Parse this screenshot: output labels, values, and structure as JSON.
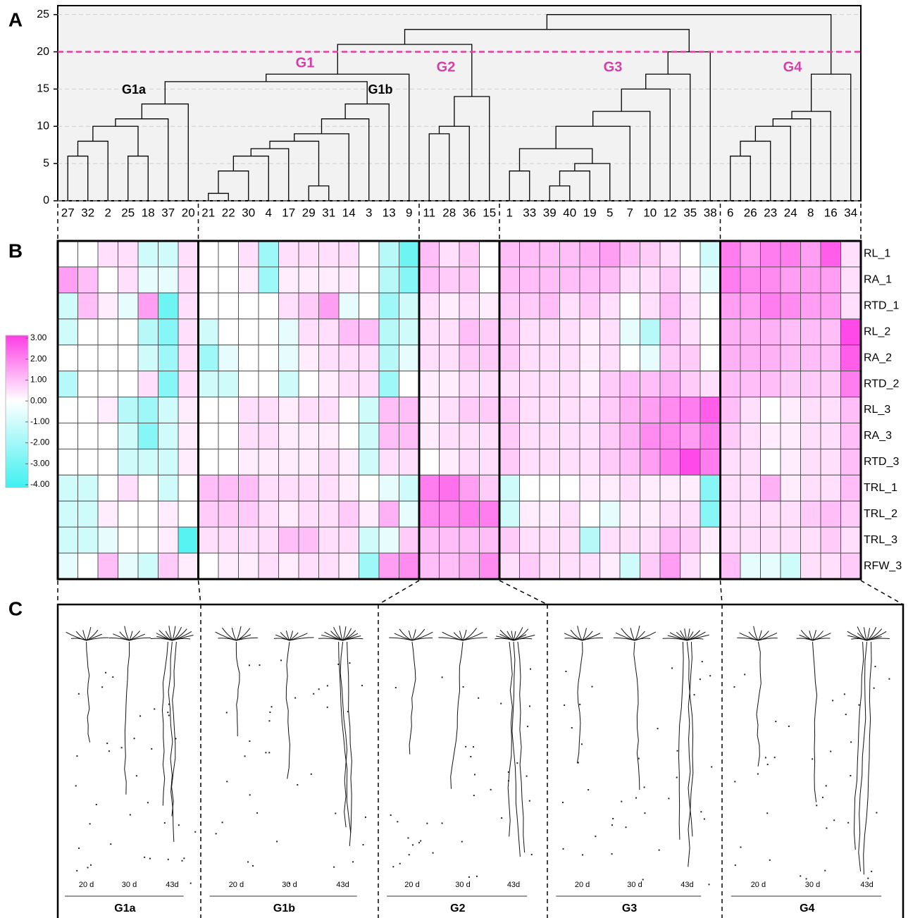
{
  "chart_data": [
    {
      "type": "dendrogram",
      "panel": "A",
      "ylim": [
        0,
        26.2
      ],
      "yticks": [
        0,
        5,
        10,
        15,
        20,
        25
      ],
      "grid": true,
      "cut_height": 20,
      "cut_color": "#e0409f",
      "cluster_labels": [
        "G1",
        "G2",
        "G3",
        "G4"
      ],
      "cluster_color": "#d63fa8",
      "subcluster_labels": [
        "G1a",
        "G1b"
      ],
      "tree": {
        "height": 25,
        "children": [
          {
            "height": 23,
            "children": [
              {
                "height": 21,
                "children": [
                  {
                    "height": 17,
                    "children": [
                      {
                        "height": 16,
                        "children": [
                          {
                            "height": 13,
                            "children": [
                              {
                                "height": 11,
                                "children": [
                                  {
                                    "height": 10,
                                    "children": [
                                      {
                                        "height": 8,
                                        "children": [
                                          {
                                            "height": 6,
                                            "children": [
                                              "27",
                                              "32"
                                            ]
                                          },
                                          "2"
                                        ]
                                      },
                                      {
                                        "height": 6,
                                        "children": [
                                          "25",
                                          "18"
                                        ]
                                      }
                                    ]
                                  },
                                  "37"
                                ]
                              },
                              "20"
                            ]
                          },
                          {
                            "height": 13,
                            "children": [
                              {
                                "height": 11,
                                "children": [
                                  {
                                    "height": 9,
                                    "children": [
                                      {
                                        "height": 8,
                                        "children": [
                                          {
                                            "height": 7,
                                            "children": [
                                              {
                                                "height": 6,
                                                "children": [
                                                  {
                                                    "height": 4,
                                                    "children": [
                                                      {
                                                        "height": 1,
                                                        "children": [
                                                          "21",
                                                          "22"
                                                        ]
                                                      },
                                                      "30"
                                                    ]
                                                  },
                                                  "4"
                                                ]
                                              },
                                              "17"
                                            ]
                                          },
                                          {
                                            "height": 2,
                                            "children": [
                                              "29",
                                              "31"
                                            ]
                                          }
                                        ]
                                      },
                                      "14"
                                    ]
                                  },
                                  "3"
                                ]
                              },
                              "13"
                            ]
                          }
                        ]
                      },
                      "9"
                    ]
                  },
                  {
                    "height": 14,
                    "children": [
                      {
                        "height": 10,
                        "children": [
                          {
                            "height": 9,
                            "children": [
                              "11",
                              "28"
                            ]
                          },
                          "36"
                        ]
                      },
                      "15"
                    ]
                  }
                ]
              },
              {
                "height": 20,
                "children": [
                  {
                    "height": 17,
                    "children": [
                      {
                        "height": 15,
                        "children": [
                          {
                            "height": 12,
                            "children": [
                              {
                                "height": 10,
                                "children": [
                                  {
                                    "height": 7,
                                    "children": [
                                      {
                                        "height": 4,
                                        "children": [
                                          "1",
                                          "33"
                                        ]
                                      },
                                      {
                                        "height": 5,
                                        "children": [
                                          {
                                            "height": 4,
                                            "children": [
                                              {
                                                "height": 2,
                                                "children": [
                                                  "39",
                                                  "40"
                                                ]
                                              },
                                              "19"
                                            ]
                                          },
                                          "5"
                                        ]
                                      }
                                    ]
                                  },
                                  "7"
                                ]
                              },
                              "10"
                            ]
                          },
                          "12"
                        ]
                      },
                      "35"
                    ]
                  },
                  "38"
                ]
              }
            ]
          },
          {
            "height": 17,
            "children": [
              {
                "height": 12,
                "children": [
                  {
                    "height": 11,
                    "children": [
                      {
                        "height": 10,
                        "children": [
                          {
                            "height": 8,
                            "children": [
                              {
                                "height": 6,
                                "children": [
                                  "6",
                                  "26"
                                ]
                              },
                              "23"
                            ]
                          },
                          "24"
                        ]
                      },
                      "8"
                    ]
                  },
                  "16"
                ]
              },
              "34"
            ]
          }
        ]
      }
    },
    {
      "type": "heatmap",
      "panel": "B",
      "rows": [
        "RL_1",
        "RA_1",
        "RTD_1",
        "RL_2",
        "RA_2",
        "RTD_2",
        "RL_3",
        "RA_3",
        "RTD_3",
        "TRL_1",
        "TRL_2",
        "TRL_3",
        "RFW_3"
      ],
      "clim": [
        -4,
        3
      ],
      "colors": [
        "#3ff0f0",
        "#ffffff",
        "#ff3ce6"
      ],
      "colorbar_ticks": [
        {
          "value": 3,
          "label": "3.00"
        },
        {
          "value": 2,
          "label": "2.00"
        },
        {
          "value": 1,
          "label": "1.00"
        },
        {
          "value": 0,
          "label": "0.00"
        },
        {
          "value": -1,
          "label": "-1.00"
        },
        {
          "value": -2,
          "label": "-2.00"
        },
        {
          "value": -3,
          "label": "-3.00"
        },
        {
          "value": -4,
          "label": "-4.00"
        }
      ],
      "values": [
        [
          0,
          0,
          0.5,
          0.5,
          -1,
          -1,
          0.5,
          0,
          0,
          0.5,
          -2,
          0.5,
          0.5,
          0.5,
          0.5,
          0,
          -1.5,
          -3,
          1,
          0.5,
          0.8,
          0,
          1,
          1,
          1,
          1,
          1.2,
          1.5,
          1,
          0.8,
          0.5,
          0,
          -1,
          2,
          1.5,
          2,
          2,
          1.5,
          2.5,
          0.5
        ],
        [
          1.5,
          1,
          0,
          0.5,
          -0.5,
          -0.5,
          0.5,
          0,
          0,
          0.3,
          -2,
          0.3,
          0.3,
          0.3,
          0.3,
          0,
          -1.5,
          -2.5,
          1,
          0.8,
          0.8,
          0,
          1,
          1,
          1,
          1,
          1,
          1,
          0.5,
          0.5,
          0.8,
          0.3,
          -0.5,
          2,
          1.8,
          1.8,
          1.5,
          1.5,
          1.5,
          0.5
        ],
        [
          -1,
          1,
          0.3,
          -0.5,
          1.5,
          -3,
          0.5,
          0,
          0,
          0,
          0,
          0.5,
          0.8,
          1.5,
          -0.5,
          0,
          -2,
          -1,
          0.5,
          0.3,
          0.5,
          0.3,
          0.8,
          0.8,
          1,
          0.5,
          0.8,
          0.5,
          0,
          0.5,
          1,
          0.5,
          0,
          1.5,
          1.5,
          2,
          1.8,
          1.5,
          1.5,
          0.5
        ],
        [
          -1,
          0,
          0,
          0,
          -1.5,
          -2.5,
          0.5,
          -1,
          0,
          0,
          0,
          -0.5,
          0.5,
          0.5,
          1,
          1,
          -1.5,
          -1,
          0.5,
          0.5,
          1,
          0.8,
          0.8,
          0.5,
          0.5,
          0.5,
          0.3,
          0.5,
          -0.5,
          -1.5,
          1,
          0.5,
          0,
          1.2,
          1.2,
          1.2,
          1,
          1,
          1,
          2.8
        ],
        [
          0,
          0,
          0,
          0,
          -1,
          -2,
          0.5,
          -2,
          -0.5,
          0,
          0,
          -0.5,
          0.3,
          0.5,
          0.5,
          0.5,
          -1.5,
          -0.5,
          0.5,
          0.5,
          0.8,
          0.8,
          0.8,
          0.5,
          0.5,
          0.5,
          0.3,
          0.5,
          0,
          -0.5,
          0.8,
          0.8,
          0,
          1.2,
          1.2,
          1.2,
          1,
          1,
          1,
          2.5
        ],
        [
          -1.5,
          0,
          0,
          0,
          0.5,
          -2.5,
          0.5,
          -1,
          -1,
          0,
          0,
          -1,
          0,
          0.3,
          0.5,
          0.5,
          -2,
          0,
          0.3,
          0.3,
          0.5,
          0.5,
          0.5,
          0.5,
          0.5,
          0.5,
          0.3,
          0.8,
          1,
          1,
          1.2,
          0.8,
          0.5,
          1,
          1,
          1,
          0.8,
          0.8,
          0.8,
          2
        ],
        [
          0,
          0,
          0.3,
          -1.5,
          -2,
          -1,
          0.3,
          0,
          0,
          0.5,
          0.5,
          0.3,
          0.5,
          0.5,
          0,
          -1,
          1,
          1,
          0.3,
          0.5,
          0.8,
          0.8,
          0.8,
          0.5,
          0.5,
          0.5,
          0.5,
          0.8,
          1.2,
          1.5,
          1.8,
          2,
          2.5,
          1,
          0.5,
          0,
          0.3,
          0.5,
          0.5,
          1
        ],
        [
          0,
          0,
          0,
          -1,
          -2.5,
          -1,
          0.3,
          0,
          0,
          0.5,
          0.5,
          0.3,
          0.3,
          0.3,
          0,
          -1,
          1,
          1,
          0.3,
          0.5,
          0.5,
          0.5,
          0.8,
          0.5,
          0.5,
          0.5,
          0.5,
          0.8,
          1.2,
          1.8,
          1.8,
          1.5,
          2,
          0.8,
          0.5,
          0.3,
          0.3,
          0.5,
          0.5,
          1
        ],
        [
          0,
          0,
          0,
          -1,
          -1,
          -1,
          0.3,
          0,
          0,
          0.3,
          0.3,
          0.3,
          0.3,
          0.5,
          0.3,
          -1,
          0.5,
          0.5,
          0,
          0.3,
          0.5,
          0.5,
          0.8,
          0.5,
          0.5,
          0.5,
          0.5,
          0.8,
          1,
          1.5,
          2,
          2.8,
          2,
          0.5,
          0.5,
          0,
          0.3,
          0.5,
          0.5,
          1
        ],
        [
          -1,
          -1,
          0,
          0.5,
          0,
          -1,
          0,
          1,
          1,
          1,
          0.5,
          0.5,
          0.5,
          0.5,
          0.3,
          0,
          -0.5,
          -1,
          2,
          2.2,
          1.5,
          0.8,
          -1,
          0,
          0,
          0,
          0.3,
          0.3,
          0.5,
          0.3,
          0.3,
          0.3,
          -2.5,
          0.5,
          0.5,
          1.2,
          0.3,
          0.5,
          0.5,
          1
        ],
        [
          -1,
          -1,
          0.3,
          0,
          0,
          0.3,
          0,
          0.8,
          0.8,
          0.8,
          0.5,
          0.3,
          0.5,
          0.5,
          0.8,
          0.3,
          1.2,
          -0.5,
          1.8,
          1.8,
          2,
          2,
          -1,
          0.3,
          0.3,
          0.5,
          0,
          -0.5,
          0.3,
          0.3,
          0.5,
          0.5,
          -2.5,
          0.5,
          0.5,
          0.5,
          0.5,
          0.8,
          1,
          0.8
        ],
        [
          -1,
          -1,
          -0.5,
          0,
          0,
          0.3,
          -3.5,
          0.5,
          0.5,
          0.5,
          0.5,
          1,
          1,
          0.5,
          0.5,
          -1,
          -0.5,
          0.8,
          1,
          1,
          1,
          1,
          0.8,
          0.5,
          0.5,
          0.5,
          -1.5,
          0.5,
          0.5,
          0.5,
          1,
          0.8,
          0.3,
          0.5,
          0.5,
          0.5,
          0.5,
          0.5,
          0.8,
          0.5
        ],
        [
          -0.5,
          0,
          1,
          -0.5,
          -1,
          0.8,
          0.3,
          0,
          0.3,
          0.3,
          0.5,
          0.3,
          0.5,
          0.5,
          0.3,
          -2,
          1.5,
          1.8,
          1,
          1,
          1.2,
          1.8,
          0.5,
          0.8,
          0.5,
          0.5,
          0.5,
          0.3,
          -1,
          0.8,
          1.5,
          0.5,
          0,
          1,
          -0.5,
          -0.5,
          -1,
          0.5,
          0.5,
          0.8
        ]
      ]
    }
  ],
  "panel_c": {
    "label": "C",
    "groups": [
      {
        "name": "G1a",
        "days": [
          "20 d",
          "30 d",
          "43d"
        ]
      },
      {
        "name": "G1b",
        "days": [
          "20 d",
          "30 d",
          "43d"
        ]
      },
      {
        "name": "G2",
        "days": [
          "20 d",
          "30 d",
          "43d"
        ]
      },
      {
        "name": "G3",
        "days": [
          "20 d",
          "30 d",
          "43d"
        ]
      },
      {
        "name": "G4",
        "days": [
          "20 d",
          "30 d",
          "43d"
        ]
      }
    ]
  }
}
